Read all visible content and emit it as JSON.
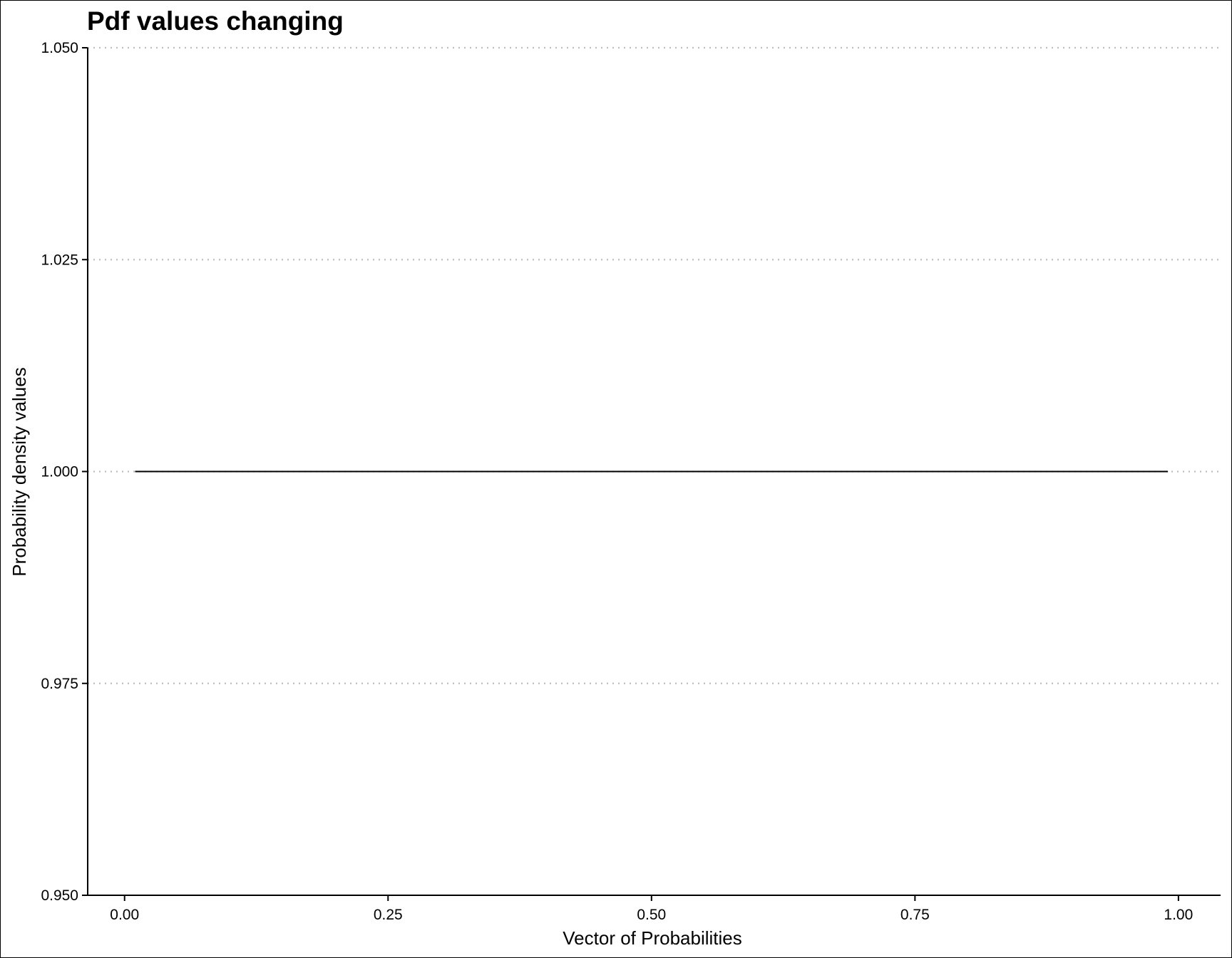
{
  "chart_data": {
    "type": "line",
    "title": "Pdf values changing",
    "xlabel": "Vector of Probabilities",
    "ylabel": "Probability density values",
    "xlim": [
      -0.035,
      1.04
    ],
    "ylim": [
      0.95,
      1.05
    ],
    "x_ticks": [
      "0.00",
      "0.25",
      "0.50",
      "0.75",
      "1.00"
    ],
    "x_tick_values": [
      0,
      0.25,
      0.5,
      0.75,
      1.0
    ],
    "y_ticks": [
      "0.950",
      "0.975",
      "1.000",
      "1.025",
      "1.050"
    ],
    "y_tick_values": [
      0.95,
      0.975,
      1.0,
      1.025,
      1.05
    ],
    "grid": "horizontal dotted",
    "series": [
      {
        "x": [
          0.01,
          0.99
        ],
        "y": [
          1.0,
          1.0
        ]
      }
    ],
    "colors": {
      "line": "#000000",
      "grid": "#bdbdbd",
      "axis": "#000000"
    }
  }
}
